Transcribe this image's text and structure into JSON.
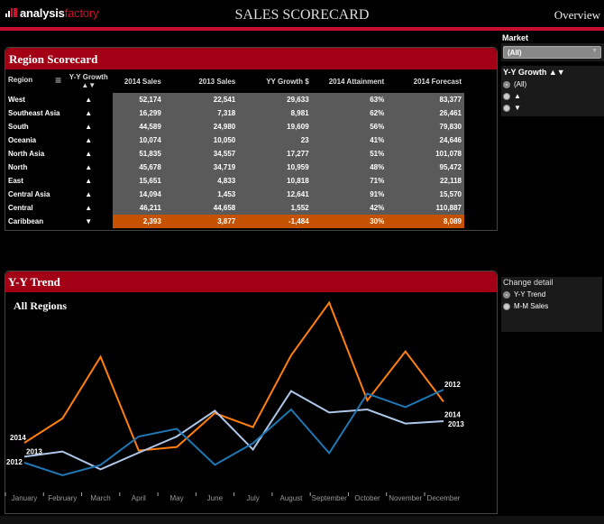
{
  "header": {
    "logo_a": "analysis",
    "logo_b": "factory",
    "title": "SALES SCORECARD",
    "overview_link": "Overview"
  },
  "scorecard": {
    "title": "Region Scorecard",
    "columns": [
      "Region",
      "Y-Y Growth ▲▼",
      "2014 Sales",
      "2013 Sales",
      "YY Growth $",
      "2014 Attainment",
      "2014 Forecast"
    ],
    "rows": [
      [
        "West",
        "▲",
        "52,174",
        "22,541",
        "29,633",
        "63%",
        "83,377"
      ],
      [
        "Southeast Asia",
        "▲",
        "16,299",
        "7,318",
        "8,981",
        "62%",
        "26,461"
      ],
      [
        "South",
        "▲",
        "44,589",
        "24,980",
        "19,609",
        "56%",
        "79,830"
      ],
      [
        "Oceania",
        "▲",
        "10,074",
        "10,050",
        "23",
        "41%",
        "24,646"
      ],
      [
        "North Asia",
        "▲",
        "51,835",
        "34,557",
        "17,277",
        "51%",
        "101,078"
      ],
      [
        "North",
        "▲",
        "45,678",
        "34,719",
        "10,959",
        "48%",
        "95,472"
      ],
      [
        "East",
        "▲",
        "15,651",
        "4,833",
        "10,818",
        "71%",
        "22,118"
      ],
      [
        "Central Asia",
        "▲",
        "14,094",
        "1,453",
        "12,641",
        "91%",
        "15,570"
      ],
      [
        "Central",
        "▲",
        "46,211",
        "44,658",
        "1,552",
        "42%",
        "110,887"
      ],
      [
        "Caribbean",
        "▼",
        "2,393",
        "3,877",
        "-1,484",
        "30%",
        "8,089"
      ]
    ],
    "colors": {
      "positive": "#5a5a5a",
      "negative": "#c55200"
    }
  },
  "filters": {
    "market_label": "Market",
    "market_value": "(All)",
    "growth_label": "Y-Y Growth ▲▼",
    "growth_options": [
      "(All)",
      "▲",
      "▼"
    ],
    "growth_selected": "(All)",
    "detail_label": "Change detail",
    "detail_options": [
      "Y-Y Trend",
      "M-M Sales"
    ],
    "detail_selected": "Y-Y Trend"
  },
  "trend": {
    "title": "Y-Y Trend",
    "subtitle": "All Regions"
  },
  "chart_data": {
    "type": "line",
    "title": "All Regions",
    "categories": [
      "January",
      "February",
      "March",
      "April",
      "May",
      "June",
      "July",
      "August",
      "September",
      "October",
      "November",
      "December"
    ],
    "grid": false,
    "series": [
      {
        "name": "2014",
        "color": "#ff7f0e",
        "values": [
          21,
          34.5,
          68.7,
          16.7,
          18.7,
          37.5,
          29.7,
          69.5,
          98.7,
          44.5,
          71.7,
          43.8
        ]
      },
      {
        "name": "2013",
        "color": "#aec7e8",
        "values": [
          13.3,
          16.2,
          6.3,
          15.5,
          24.5,
          38.8,
          17.3,
          49.7,
          37.8,
          39.5,
          31.7,
          33
        ]
      },
      {
        "name": "2012",
        "color": "#1f77b4",
        "values": [
          10,
          3,
          8.7,
          24.5,
          28.8,
          8.8,
          20.8,
          39.5,
          15.3,
          48.3,
          40.8,
          50.5
        ]
      }
    ]
  }
}
